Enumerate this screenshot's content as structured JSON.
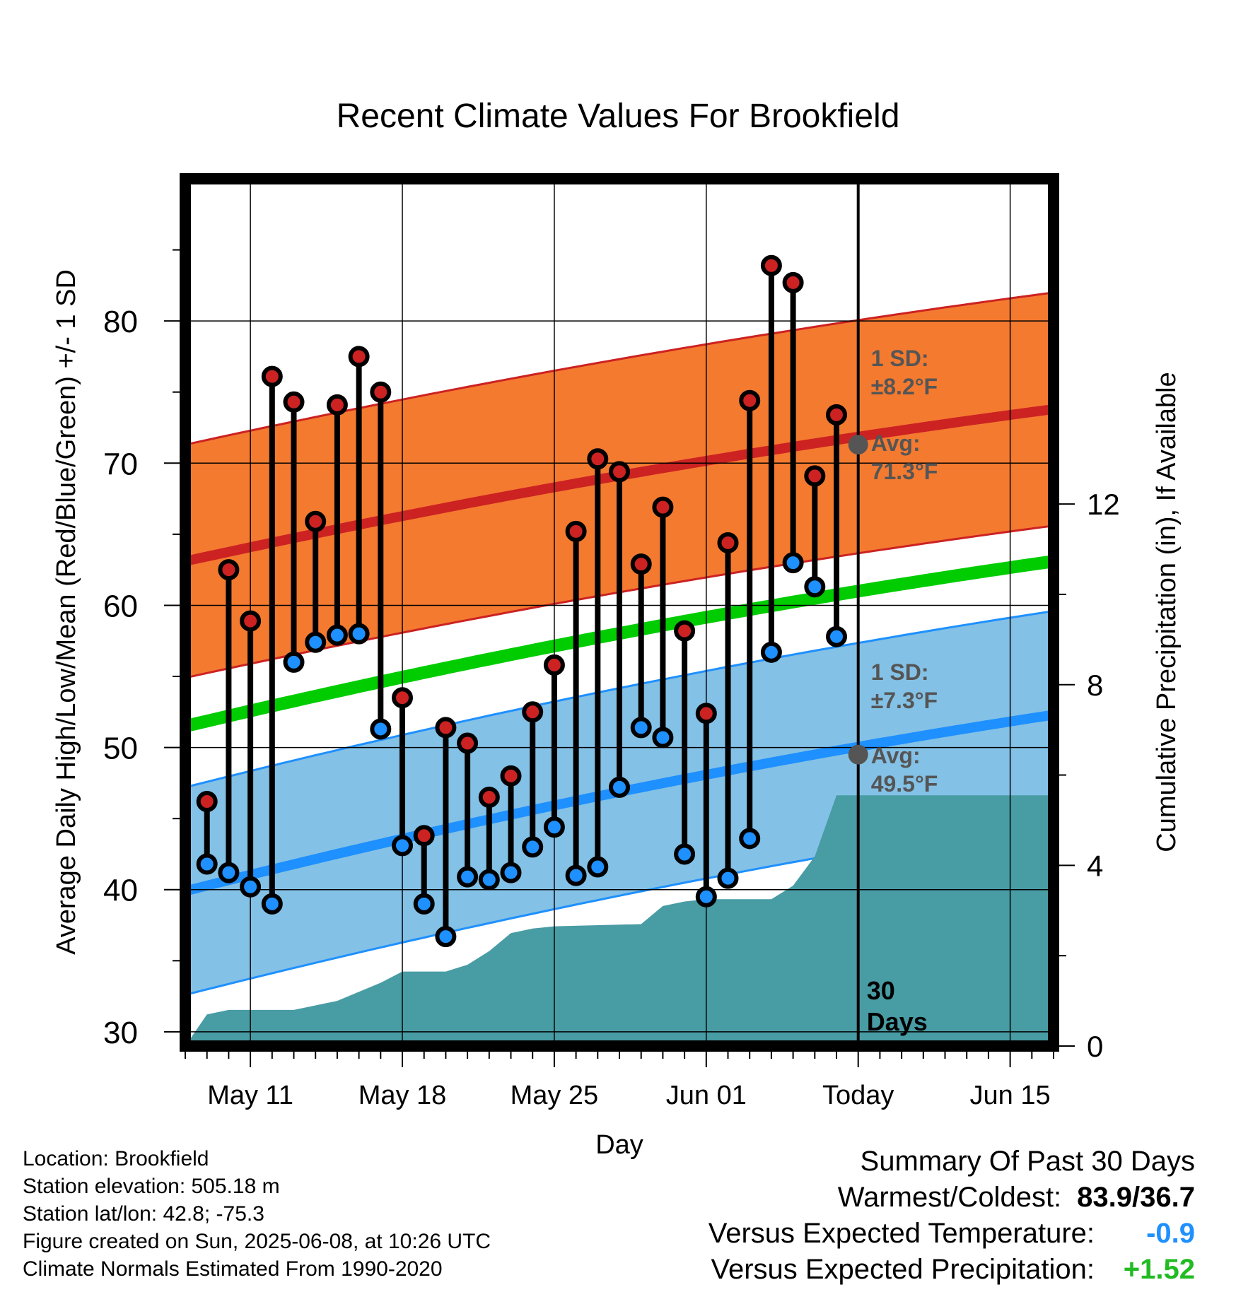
{
  "title": "Recent Climate Values For Brookfield",
  "colors": {
    "high": "#cc2222",
    "low": "#1e90ff",
    "mean": "#00cc00",
    "high_band": "#f47a30",
    "low_band": "#84c1e6",
    "precip": "#489ca4",
    "marker": "#555555"
  },
  "chart_data": {
    "type": "line",
    "xlabel": "Day",
    "ylabel": "Average Daily High/Low/Mean (Red/Blue/Green) +/- 1 SD",
    "y2label": "Cumulative Precipitation (in), If Available",
    "x_tick_labels": [
      "May 11",
      "May 18",
      "May 25",
      "Jun 01",
      "Today",
      "Jun 15"
    ],
    "x_tick_dates": [
      "2025-05-11",
      "2025-05-18",
      "2025-05-25",
      "2025-06-01",
      "2025-06-08",
      "2025-06-15"
    ],
    "x_range": [
      "2025-05-08",
      "2025-06-17"
    ],
    "ylim": [
      29,
      90
    ],
    "y_ticks": [
      30,
      40,
      50,
      60,
      70,
      80
    ],
    "y2lim": [
      0,
      19.2
    ],
    "y2_ticks": [
      0,
      4,
      8,
      12
    ],
    "grid": true,
    "today": "2025-06-08",
    "today_label": "30 Days",
    "normals": {
      "high_avg": [
        63.1,
        73.8
      ],
      "high_sd": 8.2,
      "high_sd_label": "1 SD: ±8.2°F",
      "high_avg_label": "Avg: 71.3°F",
      "high_today": 71.3,
      "low_avg": [
        39.9,
        52.3
      ],
      "low_sd": 7.3,
      "low_sd_label": "1 SD: ±7.3°F",
      "low_avg_label": "Avg: 49.5°F",
      "low_today": 49.5,
      "mean_avg": [
        51.5,
        63.1
      ]
    },
    "dates": [
      "2025-05-09",
      "2025-05-10",
      "2025-05-11",
      "2025-05-12",
      "2025-05-13",
      "2025-05-14",
      "2025-05-15",
      "2025-05-16",
      "2025-05-17",
      "2025-05-18",
      "2025-05-19",
      "2025-05-20",
      "2025-05-21",
      "2025-05-22",
      "2025-05-23",
      "2025-05-24",
      "2025-05-25",
      "2025-05-26",
      "2025-05-27",
      "2025-05-28",
      "2025-05-29",
      "2025-05-30",
      "2025-05-31",
      "2025-06-01",
      "2025-06-02",
      "2025-06-03",
      "2025-06-04",
      "2025-06-05",
      "2025-06-06",
      "2025-06-07"
    ],
    "series": [
      {
        "name": "High",
        "values": [
          46.2,
          62.5,
          58.9,
          76.1,
          74.3,
          65.9,
          74.1,
          77.5,
          75.0,
          53.5,
          43.8,
          51.4,
          50.3,
          46.5,
          48.0,
          52.5,
          55.8,
          65.2,
          70.3,
          69.4,
          62.9,
          66.9,
          58.2,
          52.4,
          64.4,
          74.4,
          83.9,
          82.7,
          69.1,
          73.4
        ]
      },
      {
        "name": "Low",
        "values": [
          41.8,
          41.2,
          40.2,
          39.0,
          56.0,
          57.4,
          57.9,
          58.0,
          51.3,
          43.1,
          39.0,
          36.7,
          40.9,
          40.7,
          41.2,
          43.0,
          44.4,
          41.0,
          41.6,
          47.2,
          51.4,
          50.7,
          42.5,
          39.5,
          40.8,
          43.6,
          56.7,
          63.0,
          61.3,
          57.8
        ]
      }
    ],
    "precip_dates": [
      "2025-05-08",
      "2025-05-09",
      "2025-05-10",
      "2025-05-13",
      "2025-05-14",
      "2025-05-15",
      "2025-05-16",
      "2025-05-17",
      "2025-05-18",
      "2025-05-20",
      "2025-05-21",
      "2025-05-22",
      "2025-05-23",
      "2025-05-24",
      "2025-05-25",
      "2025-05-29",
      "2025-05-30",
      "2025-05-31",
      "2025-06-01",
      "2025-06-02",
      "2025-06-04",
      "2025-06-05",
      "2025-06-06",
      "2025-06-07",
      "2025-06-17"
    ],
    "precip_cum": [
      0.0,
      0.7,
      0.8,
      0.8,
      0.9,
      1.0,
      1.2,
      1.4,
      1.65,
      1.65,
      1.8,
      2.1,
      2.5,
      2.6,
      2.65,
      2.7,
      3.1,
      3.2,
      3.25,
      3.25,
      3.25,
      3.55,
      4.2,
      5.55,
      5.55
    ]
  },
  "info": {
    "location": "Location: Brookfield",
    "elevation": "Station elevation: 505.18 m",
    "latlon": "Station lat/lon: 42.8; -75.3",
    "created": "Figure created on Sun, 2025-06-08, at 10:26 UTC",
    "normals_note": "Climate Normals Estimated From 1990-2020"
  },
  "summary": {
    "heading": "Summary Of Past 30 Days",
    "warm_cold_label": "Warmest/Coldest:",
    "warm_cold_value": "83.9/36.7",
    "temp_label": "Versus Expected Temperature:",
    "temp_value": "-0.9",
    "temp_color": "#1e90ff",
    "precip_label": "Versus Expected Precipitation:",
    "precip_value": "+1.52",
    "precip_color": "#22bb22"
  }
}
